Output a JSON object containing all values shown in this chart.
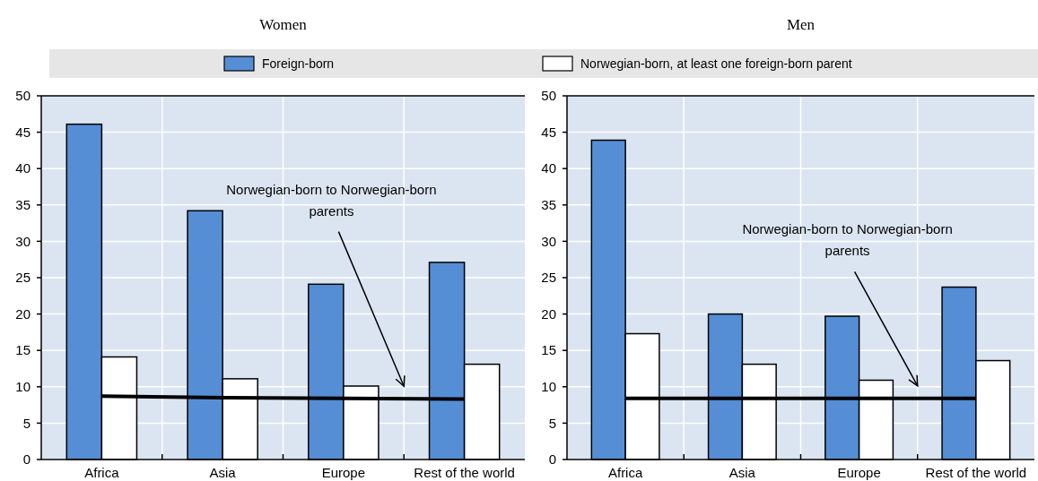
{
  "chart_data": [
    {
      "type": "bar",
      "title": "Women",
      "categories": [
        "Africa",
        "Asia",
        "Europe",
        "Rest of the world"
      ],
      "ylim": [
        0,
        50
      ],
      "yticks": [
        0,
        5,
        10,
        15,
        20,
        25,
        30,
        35,
        40,
        45,
        50
      ],
      "grid": true,
      "legend": "top",
      "annotations": [
        "Norwegian-born to Norwegian-born parents"
      ],
      "series": [
        {
          "name": "Foreign-born",
          "color": "#558ed5",
          "values": [
            46.1,
            34.2,
            24.1,
            27.1
          ]
        },
        {
          "name": "Norwegian-born, at least one foreign-born parent",
          "color": "#ffffff",
          "values": [
            14.1,
            11.1,
            10.1,
            13.1
          ]
        },
        {
          "type": "line",
          "color": "#000000",
          "values": [
            8.7,
            8.5,
            8.4,
            8.3
          ]
        }
      ]
    },
    {
      "type": "bar",
      "title": "Men",
      "categories": [
        "Africa",
        "Asia",
        "Europe",
        "Rest of the world"
      ],
      "ylim": [
        0,
        50
      ],
      "yticks": [
        0,
        5,
        10,
        15,
        20,
        25,
        30,
        35,
        40,
        45,
        50
      ],
      "grid": true,
      "annotations": [
        "Norwegian-born to Norwegian-born parents"
      ],
      "series": [
        {
          "color": "#558ed5",
          "values": [
            43.9,
            20.0,
            19.7,
            23.7
          ]
        },
        {
          "color": "#ffffff",
          "values": [
            17.3,
            13.1,
            10.9,
            13.6
          ]
        },
        {
          "type": "line",
          "color": "#000000",
          "values": [
            8.4,
            8.4,
            8.4,
            8.4
          ]
        }
      ]
    }
  ]
}
